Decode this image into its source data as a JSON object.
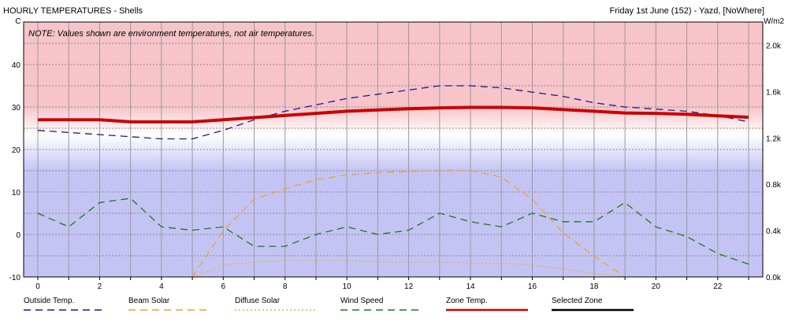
{
  "chart_data": {
    "type": "line",
    "title": "HOURLY TEMPERATURES - Shells",
    "subtitle": "Friday 1st June (152) - Yazd, [NoWhere]",
    "note": "NOTE: Values shown are environment temperatures, not air temperatures.",
    "left_axis": {
      "unit": "C",
      "range": [
        -10,
        50
      ],
      "ticks": [
        "-10",
        "0",
        "10",
        "20",
        "30",
        "40"
      ]
    },
    "right_axis": {
      "unit": "W/m2",
      "range": [
        0,
        2.2
      ],
      "ticks": [
        "0.0k",
        "0.4k",
        "0.8k",
        "1.2k",
        "1.6k",
        "2.0k"
      ],
      "tick_values": [
        0,
        0.4,
        0.8,
        1.2,
        1.6,
        2.0
      ]
    },
    "x_axis": {
      "range": [
        0,
        23
      ],
      "ticks": [
        "0",
        "2",
        "4",
        "6",
        "8",
        "10",
        "12",
        "14",
        "16",
        "18",
        "20",
        "22"
      ]
    },
    "grid": true,
    "background_bands": {
      "warm_above_c": 27,
      "cool_below_c": 20,
      "warm_color": "#f7c4ca",
      "cool_color": "#c4c4f4"
    },
    "series": [
      {
        "name": "Outside Temp.",
        "axis": "left",
        "color": "#1a1a8c",
        "style": "dashed",
        "x": [
          0,
          1,
          2,
          3,
          4,
          5,
          6,
          7,
          8,
          9,
          10,
          11,
          12,
          13,
          14,
          15,
          16,
          17,
          18,
          19,
          20,
          21,
          22,
          23
        ],
        "values": [
          24.5,
          24,
          23.5,
          23,
          22.5,
          22.5,
          24.5,
          27,
          29,
          30.5,
          32,
          33,
          34,
          35,
          35,
          34.5,
          33.5,
          32.5,
          31,
          30,
          29.5,
          29,
          28,
          26.5
        ]
      },
      {
        "name": "Beam Solar",
        "axis": "right",
        "color": "#f0a030",
        "style": "dashed",
        "x": [
          5,
          6,
          7,
          8,
          9,
          10,
          11,
          12,
          13,
          14,
          15,
          16,
          17,
          18,
          19
        ],
        "values": [
          0,
          0.4,
          0.67,
          0.76,
          0.84,
          0.88,
          0.9,
          0.91,
          0.92,
          0.92,
          0.86,
          0.67,
          0.38,
          0.18,
          0
        ]
      },
      {
        "name": "Diffuse Solar",
        "axis": "right",
        "color": "#e8b030",
        "style": "dotted",
        "x": [
          5,
          6,
          7,
          8,
          9,
          10,
          11,
          12,
          13,
          14,
          15,
          16,
          17,
          18,
          19
        ],
        "values": [
          0,
          0.1,
          0.13,
          0.14,
          0.14,
          0.14,
          0.13,
          0.13,
          0.13,
          0.12,
          0.12,
          0.1,
          0.07,
          0.03,
          0
        ]
      },
      {
        "name": "Wind Speed",
        "axis": "left",
        "color": "#1a7a1a",
        "style": "dashed",
        "x": [
          0,
          1,
          2,
          3,
          4,
          5,
          6,
          7,
          8,
          9,
          10,
          11,
          12,
          13,
          14,
          15,
          16,
          17,
          18,
          19,
          20,
          21,
          22,
          23
        ],
        "values": [
          5,
          1.8,
          7.5,
          8.5,
          1.8,
          1,
          1.8,
          -2.8,
          -2.8,
          0,
          1.8,
          0,
          1,
          5,
          3,
          1.8,
          5,
          3,
          3,
          7.5,
          1.8,
          -0.5,
          -4.5,
          -7
        ]
      },
      {
        "name": "Zone Temp.",
        "axis": "left",
        "color": "#cc0000",
        "style": "solid",
        "width": 4,
        "x": [
          0,
          1,
          2,
          3,
          4,
          5,
          6,
          7,
          8,
          9,
          10,
          11,
          12,
          13,
          14,
          15,
          16,
          17,
          18,
          19,
          20,
          21,
          22,
          23
        ],
        "values": [
          27,
          27,
          27,
          26.5,
          26.5,
          26.5,
          27,
          27.5,
          28,
          28.5,
          29,
          29.3,
          29.6,
          29.8,
          29.9,
          29.9,
          29.8,
          29.4,
          29,
          28.6,
          28.5,
          28.3,
          27.9,
          27.6
        ]
      },
      {
        "name": "Selected Zone",
        "axis": "left",
        "color": "#000000",
        "style": "solid",
        "width": 3,
        "x": [],
        "values": []
      }
    ]
  }
}
